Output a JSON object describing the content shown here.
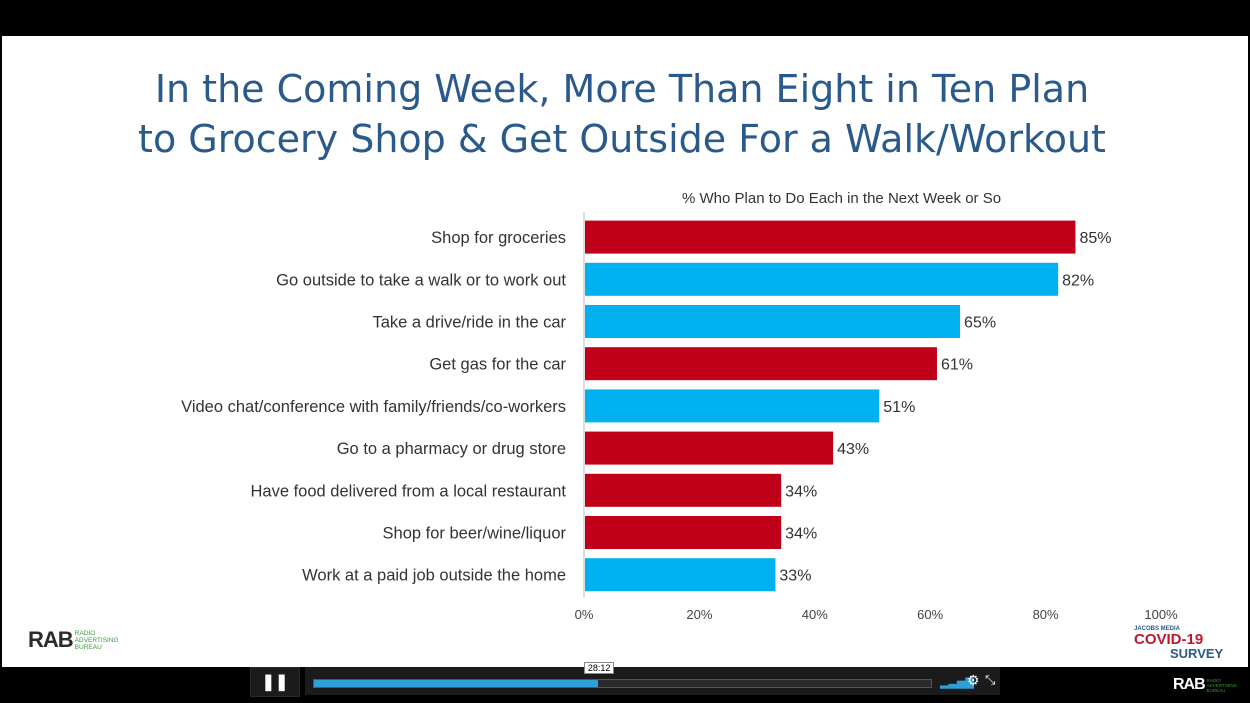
{
  "slide": {
    "title_line1": "In the Coming Week, More Than Eight in Ten Plan",
    "title_line2": "to Grocery Shop & Get Outside For a Walk/Workout",
    "subtitle": "% Who Plan to Do Each in the Next Week or So"
  },
  "chart_data": {
    "type": "bar",
    "orientation": "horizontal",
    "categories": [
      "Shop for groceries",
      "Go outside to take a walk or to work out",
      "Take a drive/ride in the car",
      "Get gas for the car",
      "Video chat/conference with family/friends/co-workers",
      "Go to a pharmacy or drug store",
      "Have food delivered from a local restaurant",
      "Shop for beer/wine/liquor",
      "Work at a paid job outside the home"
    ],
    "values": [
      85,
      82,
      65,
      61,
      51,
      43,
      34,
      34,
      33
    ],
    "value_labels": [
      "85%",
      "82%",
      "65%",
      "61%",
      "51%",
      "43%",
      "34%",
      "34%",
      "33%"
    ],
    "bar_colors": [
      "#c00018",
      "#00b0ef",
      "#00b0ef",
      "#c00018",
      "#00b0ef",
      "#c00018",
      "#c00018",
      "#c00018",
      "#00b0ef"
    ],
    "xlim": [
      0,
      100
    ],
    "xticks": [
      "0%",
      "20%",
      "40%",
      "60%",
      "80%",
      "100%"
    ],
    "grid": false
  },
  "logos": {
    "rab": "RAB",
    "rab_sub": "RADIO ADVERTISING BUREAU",
    "covid_small": "JACOBS MEDIA",
    "covid_big": "COVID-19",
    "covid_survey": "SURVEY"
  },
  "player": {
    "pause_icon": "pause-icon",
    "time_tooltip": "28:12",
    "progress": 0.46,
    "volume_icon": "volume-icon",
    "settings_icon": "gear-icon",
    "fullscreen_icon": "fullscreen-exit-icon"
  },
  "colors": {
    "title": "#2a5a8c",
    "red_bar": "#c00018",
    "blue_bar": "#00b0ef",
    "progress": "#2f9fd8"
  }
}
